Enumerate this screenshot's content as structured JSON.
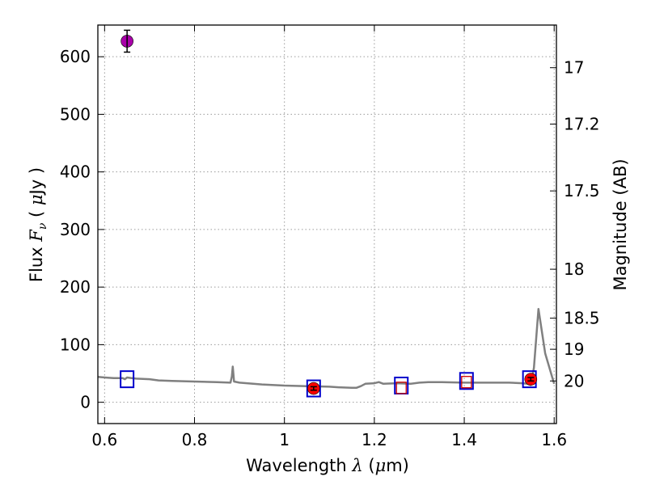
{
  "chart_data": {
    "type": "scatter",
    "title": "",
    "xlabel": {
      "prefix": "Wavelength  ",
      "symbol": "λ",
      "open": " (",
      "unit_symbol": "μ",
      "unit_rest": "m)"
    },
    "ylabel": {
      "prefix": "Flux  ",
      "symbol": "F",
      "subscript": "ν",
      "open": "  ( ",
      "unit_symbol": "μ",
      "unit_rest": "Jy )"
    },
    "y2label": "Magnitude (AB)",
    "xlim": [
      0.585,
      1.605
    ],
    "ylim": [
      -37,
      655
    ],
    "grid": true,
    "x_ticks": [
      0.6,
      0.8,
      1.0,
      1.2,
      1.4,
      1.6
    ],
    "x_tick_labels": [
      "0.6",
      "0.8",
      "1",
      "1.2",
      "1.4",
      "1.6"
    ],
    "y_ticks": [
      0,
      100,
      200,
      300,
      400,
      500,
      600
    ],
    "y_tick_labels": [
      "0",
      "100",
      "200",
      "300",
      "400",
      "500",
      "600"
    ],
    "y2_ticks": [
      {
        "label": "17",
        "flux": 581
      },
      {
        "label": "17.2",
        "flux": 483
      },
      {
        "label": "17.5",
        "flux": 367
      },
      {
        "label": "18",
        "flux": 231
      },
      {
        "label": "18.5",
        "flux": 146
      },
      {
        "label": "19",
        "flux": 92
      },
      {
        "label": "20",
        "flux": 37
      }
    ],
    "colors": {
      "spectrum": "#808080",
      "open_square_large": "#0000cc",
      "open_square_small": "#cc0000",
      "filled_red": "#ff0000",
      "filled_magenta": "#aa00aa",
      "errorbar": "#000000",
      "grid": "#9a9a9a"
    },
    "series": [
      {
        "name": "model spectrum",
        "kind": "line",
        "x": [
          0.585,
          0.6,
          0.62,
          0.64,
          0.645,
          0.65,
          0.66,
          0.67,
          0.7,
          0.72,
          0.75,
          0.8,
          0.85,
          0.88,
          0.883,
          0.885,
          0.888,
          0.9,
          0.95,
          1.0,
          1.05,
          1.1,
          1.12,
          1.15,
          1.16,
          1.17,
          1.18,
          1.2,
          1.21,
          1.22,
          1.25,
          1.28,
          1.3,
          1.32,
          1.35,
          1.4,
          1.45,
          1.5,
          1.53,
          1.54,
          1.548,
          1.555,
          1.565,
          1.58,
          1.6
        ],
        "y": [
          44,
          43,
          42,
          42,
          40,
          43,
          42,
          41,
          40,
          38,
          37,
          36,
          35,
          34,
          45,
          62,
          36,
          34,
          31,
          29,
          28,
          27,
          26,
          25,
          25,
          28,
          32,
          33,
          35,
          32,
          33,
          32,
          34,
          35,
          35,
          34,
          34,
          34,
          33,
          32,
          30,
          60,
          162,
          85,
          32
        ]
      },
      {
        "name": "large open squares",
        "kind": "open_square_large",
        "x": [
          0.65,
          1.065,
          1.26,
          1.405,
          1.545
        ],
        "y": [
          40,
          24,
          29,
          37,
          40
        ]
      },
      {
        "name": "small open squares",
        "kind": "open_square_small",
        "x": [
          1.26,
          1.405
        ],
        "y": [
          25,
          35
        ]
      },
      {
        "name": "filled red points",
        "kind": "filled_red",
        "x": [
          1.065,
          1.548
        ],
        "y": [
          24,
          40
        ],
        "yerr": [
          3,
          3
        ]
      },
      {
        "name": "filled magenta point",
        "kind": "filled_magenta",
        "x": [
          0.65
        ],
        "y": [
          627
        ],
        "yerr": [
          19
        ]
      }
    ]
  }
}
